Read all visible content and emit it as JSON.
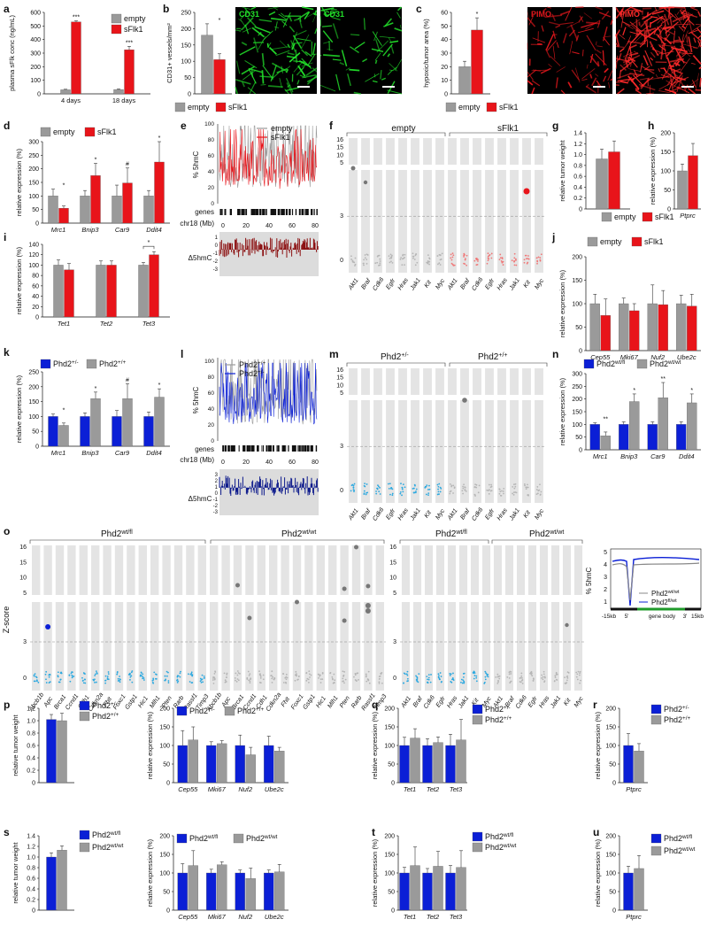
{
  "colors": {
    "grey": "#9a9a9a",
    "red": "#e8141a",
    "darkred": "#8b0f10",
    "blue": "#0b1fd6",
    "navy": "#0d1a8c",
    "cyan": "#2aa8e0",
    "lightred": "#f07777",
    "lightgrey": "#b5b5b5",
    "band": "#e4e4e4",
    "green": "#1f9a2a"
  },
  "panels": {
    "a": {
      "label": "a",
      "ylabel": "plasma sFlk conc (ng/mL)",
      "yticks": [
        "0",
        "100",
        "200",
        "300",
        "400",
        "500",
        "600"
      ],
      "ylim": [
        0,
        600
      ],
      "categories": [
        "4 days",
        "18 days"
      ],
      "series": [
        {
          "name": "empty",
          "values": [
            30,
            32
          ],
          "err": [
            4,
            4
          ]
        },
        {
          "name": "sFlk1",
          "values": [
            530,
            325
          ],
          "err": [
            8,
            25
          ]
        }
      ],
      "sig": [
        "***",
        "***"
      ],
      "legend": [
        "empty",
        "sFlk1"
      ]
    },
    "b": {
      "label": "b",
      "ylabel": "CD31+ vessels/mm²",
      "yticks": [
        "0",
        "50",
        "100",
        "150",
        "200",
        "250"
      ],
      "ylim": [
        0,
        250
      ],
      "values": [
        180,
        105
      ],
      "err": [
        35,
        18
      ],
      "sig": "*",
      "img_label": "CD31",
      "legend": [
        "empty",
        "sFlk1"
      ]
    },
    "c": {
      "label": "c",
      "ylabel": "hypoxic/tumor area (%)",
      "yticks": [
        "0",
        "10",
        "20",
        "30",
        "40",
        "50",
        "60"
      ],
      "ylim": [
        0,
        60
      ],
      "values": [
        20,
        47
      ],
      "err": [
        4,
        9
      ],
      "sig": "*",
      "img_label": "PIMO",
      "legend": [
        "empty",
        "sFlk1"
      ]
    },
    "d": {
      "label": "d",
      "ylabel": "relative expression (%)",
      "yticks": [
        "0",
        "50",
        "100",
        "150",
        "200",
        "250",
        "300"
      ],
      "ylim": [
        0,
        300
      ],
      "categories": [
        "Mrc1",
        "Bnip3",
        "Car9",
        "Ddit4"
      ],
      "series": [
        {
          "name": "empty",
          "values": [
            100,
            100,
            100,
            100
          ],
          "err": [
            25,
            20,
            40,
            20
          ]
        },
        {
          "name": "sFlk1",
          "values": [
            55,
            175,
            148,
            225
          ],
          "err": [
            8,
            45,
            55,
            75
          ]
        }
      ],
      "sig": [
        "*",
        "*",
        "#",
        "*"
      ],
      "legend": [
        "empty",
        "sFlk1"
      ]
    },
    "e": {
      "label": "e",
      "ylabel": "% 5hmC",
      "yticks": [
        "0",
        "20",
        "40",
        "60",
        "80",
        "100"
      ],
      "xticks": [
        "0",
        "20",
        "40",
        "60",
        "80"
      ],
      "legend": [
        "empty",
        "sFlk1"
      ],
      "genes": "genes",
      "chr": "chr18 (Mb)",
      "delta": "Δ5hmC",
      "dticks": [
        "1",
        "0",
        "-1",
        "-2",
        "-3"
      ]
    },
    "f": {
      "label": "f",
      "groups": [
        "empty",
        "sFlk1"
      ],
      "ylabel": "Z-score",
      "yticks_top": [
        "16",
        "15",
        "10",
        "5"
      ],
      "yticks_bottom": [
        "3",
        "0"
      ],
      "genes": [
        "Akt1",
        "Braf",
        "Cdk6",
        "Egfr",
        "Hras",
        "Jak1",
        "Kit",
        "Myc"
      ]
    },
    "g": {
      "label": "g",
      "ylabel": "relative tumor weight",
      "yticks": [
        "0",
        "0.2",
        "0.4",
        "0.6",
        "0.8",
        "1.0",
        "1.2",
        "1.4"
      ],
      "ylim": [
        0,
        1.4
      ],
      "values": [
        0.92,
        1.05
      ],
      "err": [
        0.18,
        0.2
      ],
      "legend": [
        "empty",
        "sFlk1"
      ]
    },
    "h": {
      "label": "h",
      "ylabel": "relative expression (%)",
      "yticks": [
        "0",
        "50",
        "100",
        "150",
        "200"
      ],
      "ylim": [
        0,
        200
      ],
      "values": [
        100,
        140
      ],
      "err": [
        18,
        32
      ],
      "category": "Ptprc"
    },
    "i": {
      "label": "i",
      "ylabel": "relative expression (%)",
      "yticks": [
        "0",
        "20",
        "40",
        "60",
        "80",
        "100",
        "120",
        "140"
      ],
      "ylim": [
        0,
        140
      ],
      "categories": [
        "Tet1",
        "Tet2",
        "Tet3"
      ],
      "series": [
        {
          "name": "empty",
          "values": [
            100,
            100,
            100
          ],
          "err": [
            10,
            8,
            5
          ]
        },
        {
          "name": "sFlk1",
          "values": [
            91,
            100,
            120
          ],
          "err": [
            12,
            8,
            6
          ]
        }
      ],
      "sig": "*"
    },
    "j": {
      "label": "j",
      "ylabel": "relative expression (%)",
      "yticks": [
        "0",
        "50",
        "100",
        "150",
        "200"
      ],
      "ylim": [
        0,
        200
      ],
      "categories": [
        "Cep55",
        "Mki67",
        "Nuf2",
        "Ube2c"
      ],
      "series": [
        {
          "name": "empty",
          "values": [
            100,
            100,
            100,
            100
          ],
          "err": [
            20,
            12,
            40,
            18
          ]
        },
        {
          "name": "sFlk1",
          "values": [
            75,
            85,
            98,
            95
          ],
          "err": [
            35,
            15,
            30,
            25
          ]
        }
      ],
      "legend": [
        "empty",
        "sFlk1"
      ]
    },
    "k": {
      "label": "k",
      "ylabel": "relative expression (%)",
      "yticks": [
        "0",
        "50",
        "100",
        "150",
        "200",
        "250"
      ],
      "ylim": [
        0,
        250
      ],
      "categories": [
        "Mrc1",
        "Bnip3",
        "Car9",
        "Ddit4"
      ],
      "series": [
        {
          "name": "Phd2+/-",
          "values": [
            100,
            100,
            100,
            100
          ],
          "err": [
            8,
            12,
            20,
            15
          ]
        },
        {
          "name": "Phd2+/+",
          "values": [
            70,
            160,
            160,
            165
          ],
          "err": [
            8,
            22,
            50,
            28
          ]
        }
      ],
      "sig": [
        "*",
        "*",
        "#",
        "*"
      ],
      "legend": [
        "Phd2+/-",
        "Phd2+/+"
      ]
    },
    "l": {
      "label": "l",
      "ylabel": "% 5hmC",
      "yticks": [
        "0",
        "20",
        "40",
        "60",
        "80",
        "100"
      ],
      "xticks": [
        "0",
        "20",
        "40",
        "60",
        "80"
      ],
      "legend": [
        "Phd2+/+",
        "Phd2+/-"
      ],
      "genes": "genes",
      "chr": "chr18 (Mb)",
      "delta": "Δ5hmC",
      "dticks": [
        "3",
        "2",
        "1",
        "0",
        "-1",
        "-2",
        "-3"
      ]
    },
    "m": {
      "label": "m",
      "groups": [
        "Phd2+/-",
        "Phd2+/+"
      ],
      "yticks_top": [
        "16",
        "15",
        "10",
        "5"
      ],
      "yticks_bottom": [
        "3",
        "0"
      ],
      "genes": [
        "Akt1",
        "Braf",
        "Cdk6",
        "Egfr",
        "Hras",
        "Jak1",
        "Kit",
        "Myc"
      ]
    },
    "n": {
      "label": "n",
      "ylabel": "relative expression (%)",
      "yticks": [
        "0",
        "50",
        "100",
        "150",
        "200",
        "250",
        "300"
      ],
      "ylim": [
        0,
        300
      ],
      "categories": [
        "Mrc1",
        "Bnip3",
        "Car9",
        "Ddit4"
      ],
      "series": [
        {
          "name": "Phd2wt/fl",
          "values": [
            100,
            100,
            100,
            100
          ],
          "err": [
            6,
            10,
            10,
            10
          ]
        },
        {
          "name": "Phd2wt/wt",
          "values": [
            55,
            190,
            205,
            185
          ],
          "err": [
            15,
            30,
            60,
            35
          ]
        }
      ],
      "sig": [
        "**",
        "*",
        "**",
        "*"
      ],
      "legend": [
        "Phd2wt/fl",
        "Phd2wt/wt"
      ]
    },
    "o": {
      "label": "o",
      "ylabel": "Z-score",
      "groups": [
        "Phd2wt/fl",
        "Phd2wt/wt",
        "Phd2wt/fl",
        "Phd2wt/wt"
      ],
      "yticks_top": [
        "16",
        "15",
        "10",
        "5"
      ],
      "yticks_bottom": [
        "3",
        "0"
      ],
      "genes_left": [
        "Abcb1b",
        "Apc",
        "Brca1",
        "Ccnd1",
        "Cdh1",
        "Cdkn2a",
        "Fhit",
        "Foxc1",
        "Gstp1",
        "Hic1",
        "Mlh1",
        "Pten",
        "Rarb",
        "Rassf1",
        "Timp3"
      ],
      "genes_right": [
        "Akt1",
        "Braf",
        "Cdk6",
        "Egfr",
        "Hras",
        "Jak1",
        "Kit",
        "Myc"
      ],
      "profile": {
        "ylabel": "% 5hmC",
        "yticks": [
          "5",
          "4",
          "3",
          "2",
          "1"
        ],
        "legend": [
          "Phd2wt/wt",
          "Phd2fl/wt"
        ],
        "xticks": [
          "-15kb",
          "5'",
          "3'",
          "15kb"
        ],
        "body": "gene body"
      }
    },
    "p1": {
      "label": "p",
      "ylabel": "relative tumor weight",
      "yticks": [
        "0",
        "0.2",
        "0.4",
        "0.6",
        "0.8",
        "1.0",
        "1.2"
      ],
      "ylim": [
        0,
        1.2
      ],
      "values": [
        1.02,
        1.0
      ],
      "err": [
        0.08,
        0.12
      ],
      "legend": [
        "Phd2+/-",
        "Phd2+/+"
      ]
    },
    "p2": {
      "ylabel": "relative expression (%)",
      "yticks": [
        "0",
        "50",
        "100",
        "150",
        "200"
      ],
      "ylim": [
        0,
        200
      ],
      "categories": [
        "Cep55",
        "Mki67",
        "Nuf2",
        "Ube2c"
      ],
      "series": [
        {
          "name": "Phd2+/-",
          "values": [
            100,
            100,
            100,
            100
          ],
          "err": [
            40,
            10,
            28,
            25
          ]
        },
        {
          "name": "Phd2+/+",
          "values": [
            115,
            105,
            75,
            85
          ],
          "err": [
            35,
            8,
            20,
            10
          ]
        }
      ],
      "legend": [
        "Phd2+/-",
        "Phd2+/+"
      ]
    },
    "q": {
      "label": "q",
      "ylabel": "relative expression (%)",
      "yticks": [
        "0",
        "50",
        "100",
        "150",
        "200"
      ],
      "ylim": [
        0,
        200
      ],
      "categories": [
        "Tet1",
        "Tet2",
        "Tet3"
      ],
      "series": [
        {
          "name": "Phd2+/-",
          "values": [
            100,
            100,
            100
          ],
          "err": [
            22,
            18,
            30
          ]
        },
        {
          "name": "Phd2+/+",
          "values": [
            120,
            108,
            115
          ],
          "err": [
            25,
            15,
            55
          ]
        }
      ],
      "legend": [
        "Phd2+/-",
        "Phd2+/+"
      ]
    },
    "r": {
      "label": "r",
      "ylabel": "relative expression (%)",
      "yticks": [
        "0",
        "50",
        "100",
        "150",
        "200"
      ],
      "ylim": [
        0,
        200
      ],
      "values": [
        100,
        85
      ],
      "err": [
        32,
        20
      ],
      "category": "Ptprc",
      "legend": [
        "Phd2+/-",
        "Phd2+/+"
      ]
    },
    "s1": {
      "label": "s",
      "ylabel": "relative tumor weight",
      "yticks": [
        "0",
        "0.2",
        "0.4",
        "0.6",
        "0.8",
        "1.0",
        "1.2",
        "1.4"
      ],
      "ylim": [
        0,
        1.4
      ],
      "values": [
        1.0,
        1.13
      ],
      "err": [
        0.08,
        0.08
      ],
      "legend": [
        "Phd2wt/fl",
        "Phd2wt/wt"
      ]
    },
    "s2": {
      "ylabel": "relative expression (%)",
      "yticks": [
        "0",
        "50",
        "100",
        "150",
        "200"
      ],
      "ylim": [
        0,
        200
      ],
      "categories": [
        "Cep55",
        "Mki67",
        "Nuf2",
        "Ube2c"
      ],
      "series": [
        {
          "name": "Phd2wt/fl",
          "values": [
            100,
            100,
            100,
            100
          ],
          "err": [
            25,
            10,
            8,
            8
          ]
        },
        {
          "name": "Phd2wt/wt",
          "values": [
            120,
            122,
            85,
            103
          ],
          "err": [
            40,
            8,
            28,
            20
          ]
        }
      ],
      "legend": [
        "Phd2wt/fl",
        "Phd2wt/wt"
      ]
    },
    "t": {
      "label": "t",
      "ylabel": "relative expression (%)",
      "yticks": [
        "0",
        "50",
        "100",
        "150",
        "200"
      ],
      "ylim": [
        0,
        200
      ],
      "categories": [
        "Tet1",
        "Tet2",
        "Tet3"
      ],
      "series": [
        {
          "name": "Phd2wt/fl",
          "values": [
            100,
            100,
            100
          ],
          "err": [
            15,
            12,
            20
          ]
        },
        {
          "name": "Phd2wt/wt",
          "values": [
            120,
            118,
            115
          ],
          "err": [
            50,
            40,
            45
          ]
        }
      ],
      "legend": [
        "Phd2wt/fl",
        "Phd2wt/wt"
      ]
    },
    "u": {
      "label": "u",
      "ylabel": "relative expression (%)",
      "yticks": [
        "0",
        "50",
        "100",
        "150",
        "200"
      ],
      "ylim": [
        0,
        200
      ],
      "values": [
        100,
        112
      ],
      "err": [
        18,
        35
      ],
      "category": "Ptprc",
      "legend": [
        "Phd2wt/fl",
        "Phd2wt/wt"
      ]
    }
  }
}
